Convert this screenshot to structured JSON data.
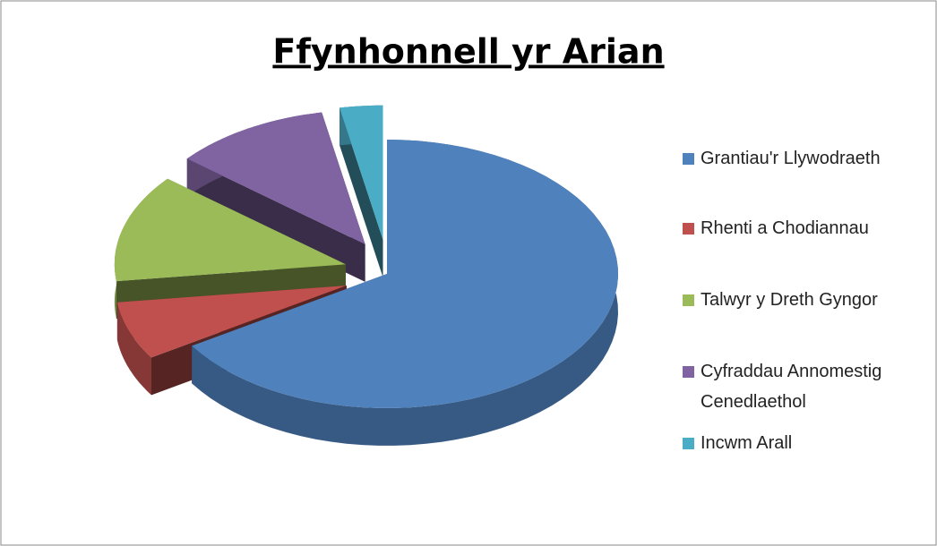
{
  "chart_data": {
    "type": "pie",
    "title": "Ffynhonnell yr Arian",
    "categories": [
      "Grantiau'r Llywodraeth",
      "Rhenti a Chodiannau",
      "Talwyr y Dreth Gyngor",
      "Cyfraddau Annomestig Cenedlaethol",
      "Incwm Arall"
    ],
    "values": [
      66,
      7,
      13,
      11,
      3
    ],
    "colors": [
      "#4f81bd",
      "#c0504d",
      "#9bbb59",
      "#8064a2",
      "#4bacc6"
    ],
    "legend": "right"
  }
}
